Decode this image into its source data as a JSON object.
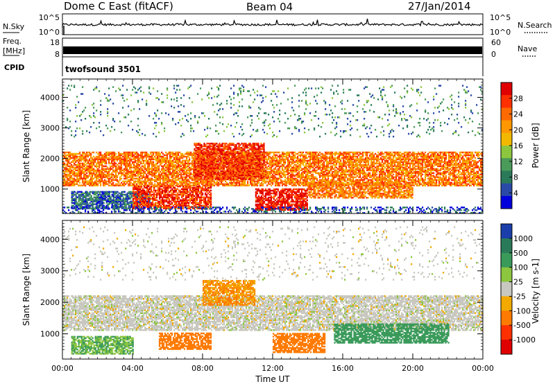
{
  "header": {
    "station": "Dome C East (fitACF)",
    "beam": "Beam 04",
    "date": "27/Jan/2014"
  },
  "summary_panels": {
    "nsky": {
      "label": "N.Sky",
      "ticks": [
        "10^5",
        "10^0"
      ]
    },
    "nsearch": {
      "label": "N.Search",
      "ticks": [
        "10^5",
        "10^0"
      ]
    },
    "freq": {
      "label": "Freq.",
      "unit": "[MHz]",
      "ticks": [
        "18",
        "8"
      ]
    },
    "nave": {
      "label": "Nave",
      "ticks": [
        "60",
        "0"
      ]
    },
    "cpid": {
      "label": "CPID",
      "value": "twofsound 3501"
    }
  },
  "chart_data": [
    {
      "type": "heatmap",
      "name": "power",
      "xlabel": "",
      "ylabel": "Slant Range [km]",
      "xlim": [
        0,
        24
      ],
      "ylim": [
        200,
        4600
      ],
      "yticks": [
        1000,
        2000,
        3000,
        4000
      ],
      "xtick_labels": [
        "00:00",
        "04:00",
        "08:00",
        "12:00",
        "16:00",
        "20:00",
        "00:00"
      ],
      "colorbar": {
        "label": "Power [dB]",
        "ticks": [
          "28",
          "24",
          "20",
          "16",
          "12",
          "8",
          "4"
        ],
        "colors": [
          "#e00000",
          "#ff3000",
          "#ff6a00",
          "#ff9800",
          "#f2b800",
          "#8cc63f",
          "#4a9a5a",
          "#2a7a5a",
          "#2a4aa8",
          "#0000dd"
        ]
      },
      "bands": [
        {
          "from": 0.0,
          "to": 24.0,
          "lo": 1100,
          "hi": 2200,
          "level": 22
        },
        {
          "from": 7.5,
          "to": 11.5,
          "lo": 1300,
          "hi": 2500,
          "level": 26
        },
        {
          "from": 0.5,
          "to": 5.0,
          "lo": 350,
          "hi": 900,
          "level": 8
        },
        {
          "from": 4.0,
          "to": 8.5,
          "lo": 350,
          "hi": 1100,
          "level": 26
        },
        {
          "from": 11.0,
          "to": 14.0,
          "lo": 300,
          "hi": 1000,
          "level": 28
        },
        {
          "from": 14.0,
          "to": 20.0,
          "lo": 700,
          "hi": 1200,
          "level": 22
        },
        {
          "from": 0.0,
          "to": 24.0,
          "lo": 200,
          "hi": 400,
          "level": 6
        },
        {
          "from": 0.0,
          "to": 24.0,
          "lo": 2700,
          "hi": 4400,
          "level": 10
        }
      ]
    },
    {
      "type": "heatmap",
      "name": "velocity",
      "xlabel": "Time UT",
      "ylabel": "Slant Range [km]",
      "xlim": [
        0,
        24
      ],
      "ylim": [
        200,
        4600
      ],
      "yticks": [
        1000,
        2000,
        3000,
        4000
      ],
      "xtick_labels": [
        "00:00",
        "04:00",
        "08:00",
        "12:00",
        "16:00",
        "20:00",
        "00:00"
      ],
      "colorbar": {
        "label": "Velocity [m s-1]",
        "ticks": [
          "1000",
          "500",
          "100",
          "25",
          "-25",
          "-100",
          "-500",
          "-1000"
        ],
        "colors": [
          "#1a3faa",
          "#2a7a5a",
          "#3a9a5a",
          "#8cc63f",
          "#c8c8c0",
          "#f2a900",
          "#ff7a00",
          "#ff3000",
          "#e00000"
        ]
      },
      "bands": [
        {
          "from": 0.0,
          "to": 24.0,
          "lo": 1100,
          "hi": 2200,
          "level": 0
        },
        {
          "from": 8.0,
          "to": 11.0,
          "lo": 1900,
          "hi": 2700,
          "level": -100
        },
        {
          "from": 0.5,
          "to": 4.0,
          "lo": 350,
          "hi": 900,
          "level": 100
        },
        {
          "from": 5.5,
          "to": 8.5,
          "lo": 500,
          "hi": 1000,
          "level": -300
        },
        {
          "from": 12.0,
          "to": 15.0,
          "lo": 400,
          "hi": 1000,
          "level": -300
        },
        {
          "from": 15.5,
          "to": 22.0,
          "lo": 700,
          "hi": 1300,
          "level": 300
        },
        {
          "from": 0.0,
          "to": 24.0,
          "lo": 2700,
          "hi": 4400,
          "level": 0
        }
      ]
    }
  ]
}
